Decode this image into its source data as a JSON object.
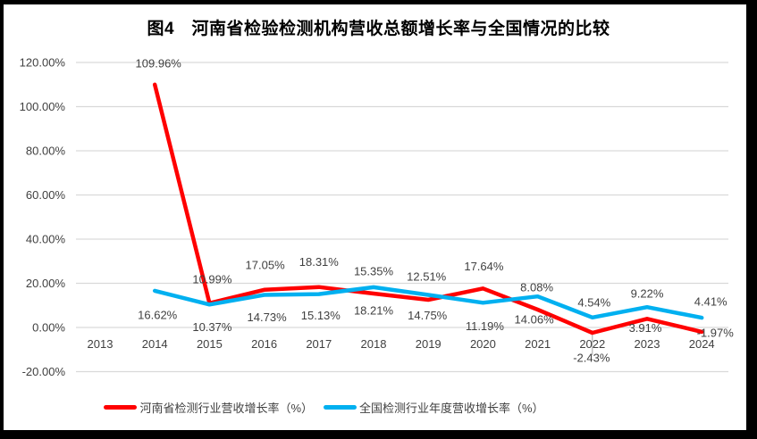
{
  "chart_data": {
    "type": "line",
    "title": "图4　河南省检验检测机构营收总额增长率与全国情况的比较",
    "categories": [
      "2013",
      "2014",
      "2015",
      "2016",
      "2017",
      "2018",
      "2019",
      "2020",
      "2021",
      "2022",
      "2023",
      "2024"
    ],
    "series": [
      {
        "name": "河南省检测行业营收增长率（%）",
        "color": "#FF0000",
        "values": [
          null,
          109.96,
          10.99,
          17.05,
          18.31,
          15.35,
          12.51,
          17.64,
          8.08,
          -2.43,
          3.91,
          -1.97
        ],
        "labels": [
          "",
          "109.96%",
          "10.99%",
          "17.05%",
          "18.31%",
          "15.35%",
          "12.51%",
          "17.64%",
          "8.08%",
          "-2.43%",
          "3.91%",
          "-1.97%"
        ]
      },
      {
        "name": "全国检测行业年度营收增长率（%）",
        "color": "#00B0F0",
        "values": [
          null,
          16.62,
          10.37,
          14.73,
          15.13,
          18.21,
          14.75,
          11.19,
          14.06,
          4.54,
          9.22,
          4.41
        ],
        "labels": [
          "",
          "16.62%",
          "10.37%",
          "14.73%",
          "15.13%",
          "18.21%",
          "14.75%",
          "11.19%",
          "14.06%",
          "4.54%",
          "9.22%",
          "4.41%"
        ]
      }
    ],
    "y_axis": {
      "min": -20,
      "max": 120,
      "step": 20,
      "tick_labels": [
        "-20.00%",
        "0.00%",
        "20.00%",
        "40.00%",
        "60.00%",
        "80.00%",
        "100.00%",
        "120.00%"
      ]
    },
    "grid": true,
    "legend_position": "bottom",
    "colors": {
      "gridline": "#D9D9D9",
      "axis_text": "#404040",
      "leader_line": "#A6A6A6",
      "frame_border": "#000000",
      "background": "#FFFFFF"
    }
  }
}
